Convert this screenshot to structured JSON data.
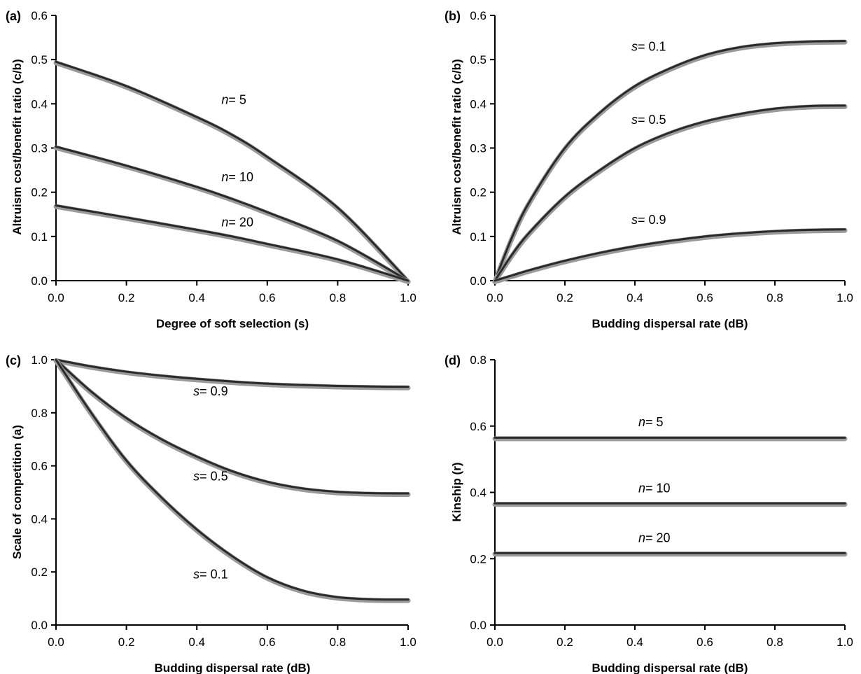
{
  "chart_data": [
    {
      "panel_letter": "(a)",
      "type": "line",
      "xlabel": "Degree of soft selection (s)",
      "ylabel": "Altruism cost/benefit ratio (c/b)",
      "xlim": [
        0,
        1
      ],
      "ylim": [
        0,
        0.6
      ],
      "xticks": [
        "0.0",
        "0.2",
        "0.4",
        "0.6",
        "0.8",
        "1.0"
      ],
      "yticks": [
        "0.0",
        "0.1",
        "0.2",
        "0.3",
        "0.4",
        "0.5",
        "0.6"
      ],
      "series": [
        {
          "label_var": "n",
          "label_eq": "= 5",
          "x": [
            0,
            0.2,
            0.4,
            0.5,
            0.6,
            0.8,
            1.0
          ],
          "y": [
            0.495,
            0.44,
            0.37,
            0.33,
            0.28,
            0.165,
            0.0
          ],
          "label_at": [
            0.47,
            0.4
          ]
        },
        {
          "label_var": "n",
          "label_eq": "= 10",
          "x": [
            0,
            0.2,
            0.4,
            0.5,
            0.6,
            0.8,
            1.0
          ],
          "y": [
            0.303,
            0.26,
            0.212,
            0.185,
            0.155,
            0.09,
            0.0
          ],
          "label_at": [
            0.47,
            0.225
          ]
        },
        {
          "label_var": "n",
          "label_eq": "= 20",
          "x": [
            0,
            0.2,
            0.4,
            0.5,
            0.6,
            0.8,
            1.0
          ],
          "y": [
            0.17,
            0.143,
            0.115,
            0.1,
            0.083,
            0.048,
            0.0
          ],
          "label_at": [
            0.47,
            0.123
          ]
        }
      ]
    },
    {
      "panel_letter": "(b)",
      "type": "line",
      "xlabel": "Budding dispersal rate (dB)",
      "ylabel": "Altruism cost/benefit ratio (c/b)",
      "xlim": [
        0,
        1
      ],
      "ylim": [
        0,
        0.6
      ],
      "xticks": [
        "0.0",
        "0.2",
        "0.4",
        "0.6",
        "0.8",
        "1.0"
      ],
      "yticks": [
        "0.0",
        "0.1",
        "0.2",
        "0.3",
        "0.4",
        "0.5",
        "0.6"
      ],
      "series": [
        {
          "label_var": "s",
          "label_eq": "= 0.1",
          "x": [
            0,
            0.05,
            0.1,
            0.2,
            0.3,
            0.4,
            0.5,
            0.6,
            0.7,
            0.8,
            0.9,
            1.0
          ],
          "y": [
            0.0,
            0.1,
            0.18,
            0.3,
            0.38,
            0.44,
            0.48,
            0.51,
            0.528,
            0.537,
            0.541,
            0.542
          ],
          "label_at": [
            0.39,
            0.52
          ]
        },
        {
          "label_var": "s",
          "label_eq": "= 0.5",
          "x": [
            0,
            0.05,
            0.1,
            0.2,
            0.3,
            0.4,
            0.5,
            0.6,
            0.7,
            0.8,
            0.9,
            1.0
          ],
          "y": [
            0.0,
            0.06,
            0.11,
            0.19,
            0.25,
            0.3,
            0.335,
            0.36,
            0.377,
            0.389,
            0.395,
            0.396
          ],
          "label_at": [
            0.39,
            0.355
          ]
        },
        {
          "label_var": "s",
          "label_eq": "= 0.9",
          "x": [
            0,
            0.05,
            0.1,
            0.2,
            0.3,
            0.4,
            0.5,
            0.6,
            0.7,
            0.8,
            0.9,
            1.0
          ],
          "y": [
            0.0,
            0.012,
            0.024,
            0.045,
            0.063,
            0.078,
            0.09,
            0.1,
            0.107,
            0.112,
            0.115,
            0.116
          ],
          "label_at": [
            0.39,
            0.128
          ]
        }
      ]
    },
    {
      "panel_letter": "(c)",
      "type": "line",
      "xlabel": "Budding dispersal rate (dB)",
      "ylabel": "Scale of competition (a)",
      "xlim": [
        0,
        1
      ],
      "ylim": [
        0,
        1.0
      ],
      "xticks": [
        "0.0",
        "0.2",
        "0.4",
        "0.6",
        "0.8",
        "1.0"
      ],
      "yticks": [
        "0.0",
        "0.2",
        "0.4",
        "0.6",
        "0.8",
        "1.0"
      ],
      "series": [
        {
          "label_var": "s",
          "label_eq": "= 0.9",
          "x": [
            0,
            0.1,
            0.2,
            0.3,
            0.4,
            0.5,
            0.6,
            0.7,
            0.8,
            0.9,
            1.0
          ],
          "y": [
            1.0,
            0.975,
            0.955,
            0.94,
            0.928,
            0.918,
            0.91,
            0.905,
            0.901,
            0.899,
            0.898
          ],
          "label_at": [
            0.39,
            0.865
          ]
        },
        {
          "label_var": "s",
          "label_eq": "= 0.5",
          "x": [
            0,
            0.1,
            0.2,
            0.3,
            0.4,
            0.5,
            0.6,
            0.7,
            0.8,
            0.9,
            1.0
          ],
          "y": [
            1.0,
            0.88,
            0.78,
            0.7,
            0.635,
            0.58,
            0.54,
            0.515,
            0.502,
            0.497,
            0.496
          ],
          "label_at": [
            0.39,
            0.545
          ]
        },
        {
          "label_var": "s",
          "label_eq": "= 0.1",
          "x": [
            0,
            0.1,
            0.2,
            0.3,
            0.4,
            0.5,
            0.6,
            0.7,
            0.8,
            0.9,
            1.0
          ],
          "y": [
            1.0,
            0.8,
            0.62,
            0.48,
            0.36,
            0.26,
            0.18,
            0.13,
            0.105,
            0.097,
            0.096
          ],
          "label_at": [
            0.39,
            0.175
          ]
        }
      ]
    },
    {
      "panel_letter": "(d)",
      "type": "line",
      "xlabel": "Budding dispersal rate (dB)",
      "ylabel": "Kinship (r)",
      "xlim": [
        0,
        1
      ],
      "ylim": [
        0,
        0.8
      ],
      "xticks": [
        "0.0",
        "0.2",
        "0.4",
        "0.6",
        "0.8",
        "1.0"
      ],
      "yticks": [
        "0.0",
        "0.2",
        "0.4",
        "0.6",
        "0.8"
      ],
      "series": [
        {
          "label_var": "n",
          "label_eq": "= 5",
          "x": [
            0,
            1.0
          ],
          "y": [
            0.565,
            0.565
          ],
          "label_at": [
            0.41,
            0.6
          ]
        },
        {
          "label_var": "n",
          "label_eq": "= 10",
          "x": [
            0,
            1.0
          ],
          "y": [
            0.367,
            0.367
          ],
          "label_at": [
            0.41,
            0.4
          ]
        },
        {
          "label_var": "n",
          "label_eq": "= 20",
          "x": [
            0,
            1.0
          ],
          "y": [
            0.217,
            0.217
          ],
          "label_at": [
            0.41,
            0.25
          ]
        }
      ]
    }
  ]
}
